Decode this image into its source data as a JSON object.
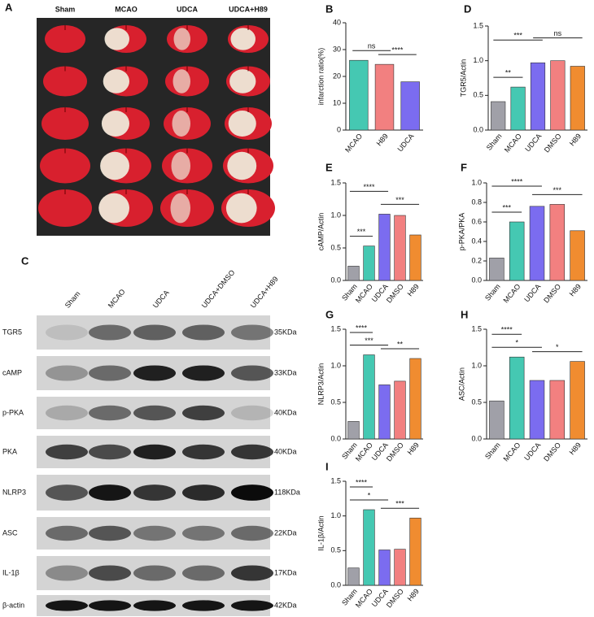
{
  "brain_panel": {
    "label": "A",
    "groups": [
      "Sham",
      "MCAO",
      "UDCA",
      "UDCA+H89"
    ]
  },
  "blot_panel": {
    "label": "C",
    "lanes": [
      "Sham",
      "MCAO",
      "UDCA",
      "UDCA+DMSO",
      "UDCA+H89"
    ],
    "rows": [
      {
        "protein": "TGR5",
        "size": "35KDa"
      },
      {
        "protein": "cAMP",
        "size": "33KDa"
      },
      {
        "protein": "p-PKA",
        "size": "40KDa"
      },
      {
        "protein": "PKA",
        "size": "40KDa"
      },
      {
        "protein": "NLRP3",
        "size": "118KDa"
      },
      {
        "protein": "ASC",
        "size": "22KDa"
      },
      {
        "protein": "IL-1β",
        "size": "17KDa"
      },
      {
        "protein": "β-actin",
        "size": "42KDa"
      }
    ]
  },
  "chart_data": [
    {
      "type": "bar",
      "label": "B",
      "ylabel": "infarction ratio(%)",
      "categories": [
        "MCAO",
        "H89",
        "UDCA"
      ],
      "values": [
        26,
        24.5,
        18
      ],
      "colors": [
        "#45c8b2",
        "#f28080",
        "#7b6cf0"
      ],
      "ylim": [
        0,
        40
      ],
      "yticks": [
        0,
        10,
        20,
        30,
        40
      ],
      "annotations": [
        "ns",
        "****"
      ]
    },
    {
      "type": "bar",
      "label": "D",
      "ylabel": "TGR5/Actin",
      "categories": [
        "Sham",
        "MCAO",
        "UDCA",
        "DMSO",
        "H89"
      ],
      "values": [
        0.41,
        0.62,
        0.97,
        1.0,
        0.92
      ],
      "colors": [
        "#a0a0a8",
        "#45c8b2",
        "#7b6cf0",
        "#f28080",
        "#f08c30"
      ],
      "ylim": [
        0,
        1.5
      ],
      "yticks": [
        {
          "value": 0,
          "label": "0.0"
        },
        0.5,
        {
          "value": 1,
          "label": "1.0"
        },
        1.5
      ],
      "annotations": [
        "**",
        "***",
        "ns"
      ]
    },
    {
      "type": "bar",
      "label": "E",
      "ylabel": "cAMP/Actin",
      "categories": [
        "Sham",
        "MCAO",
        "UDCA",
        "DMSO",
        "H89"
      ],
      "values": [
        0.22,
        0.53,
        1.02,
        1.0,
        0.7
      ],
      "colors": [
        "#a0a0a8",
        "#45c8b2",
        "#7b6cf0",
        "#f28080",
        "#f08c30"
      ],
      "ylim": [
        0,
        1.5
      ],
      "yticks": [
        {
          "value": 0,
          "label": "0.0"
        },
        0.5,
        {
          "value": 1,
          "label": "1.0"
        },
        1.5
      ],
      "annotations": [
        "***",
        "****",
        "***"
      ]
    },
    {
      "type": "bar",
      "label": "F",
      "ylabel": "p-PKA/PKA",
      "categories": [
        "Sham",
        "MCAO",
        "UDCA",
        "DMSO",
        "H89"
      ],
      "values": [
        0.23,
        0.6,
        0.76,
        0.78,
        0.51
      ],
      "colors": [
        "#a0a0a8",
        "#45c8b2",
        "#7b6cf0",
        "#f28080",
        "#f08c30"
      ],
      "ylim": [
        0,
        1
      ],
      "yticks": [
        {
          "value": 0,
          "label": "0.0"
        },
        0.2,
        0.4,
        0.6,
        0.8,
        {
          "value": 1,
          "label": "1.0"
        }
      ],
      "annotations": [
        "***",
        "****",
        "***"
      ]
    },
    {
      "type": "bar",
      "label": "G",
      "ylabel": "NLRP3/Actin",
      "categories": [
        "Sham",
        "MCAO",
        "UDCA",
        "DMSO",
        "H89"
      ],
      "values": [
        0.24,
        1.15,
        0.74,
        0.79,
        1.1
      ],
      "colors": [
        "#a0a0a8",
        "#45c8b2",
        "#7b6cf0",
        "#f28080",
        "#f08c30"
      ],
      "ylim": [
        0,
        1.5
      ],
      "yticks": [
        {
          "value": 0,
          "label": "0.0"
        },
        0.5,
        {
          "value": 1,
          "label": "1.0"
        },
        1.5
      ],
      "annotations": [
        "****",
        "***",
        "**"
      ]
    },
    {
      "type": "bar",
      "label": "H",
      "ylabel": "ASC/Actin",
      "categories": [
        "Sham",
        "MCAO",
        "UDCA",
        "DMSO",
        "H89"
      ],
      "values": [
        0.52,
        1.12,
        0.8,
        0.8,
        1.06
      ],
      "colors": [
        "#a0a0a8",
        "#45c8b2",
        "#7b6cf0",
        "#f28080",
        "#f08c30"
      ],
      "ylim": [
        0,
        1.5
      ],
      "yticks": [
        {
          "value": 0,
          "label": "0.0"
        },
        0.5,
        {
          "value": 1,
          "label": "1.0"
        },
        1.5
      ],
      "annotations": [
        "****",
        "*",
        "*"
      ]
    },
    {
      "type": "bar",
      "label": "I",
      "ylabel": "IL-1β/Actin",
      "categories": [
        "Sham",
        "MCAO",
        "UDCA",
        "DMSO",
        "H89"
      ],
      "values": [
        0.25,
        1.09,
        0.51,
        0.52,
        0.97
      ],
      "colors": [
        "#a0a0a8",
        "#45c8b2",
        "#7b6cf0",
        "#f28080",
        "#f08c30"
      ],
      "ylim": [
        0,
        1.5
      ],
      "yticks": [
        {
          "value": 0,
          "label": "0.0"
        },
        0.5,
        {
          "value": 1,
          "label": "1.0"
        },
        1.5
      ],
      "annotations": [
        "****",
        "*",
        "***"
      ]
    }
  ]
}
